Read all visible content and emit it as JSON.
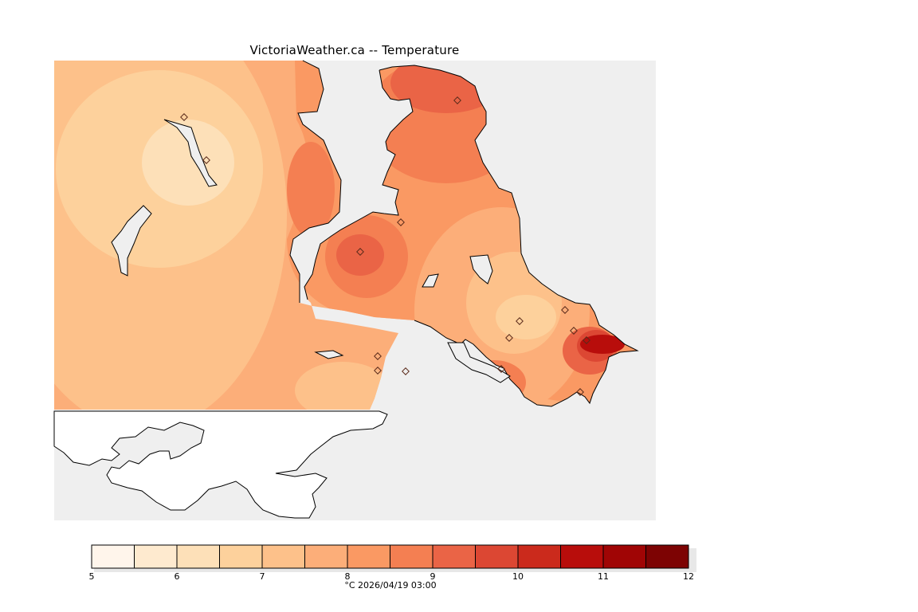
{
  "title": "VictoriaWeather.ca -- Temperature",
  "map": {
    "variable": "Temperature",
    "unit": "°C",
    "valid_time": "2026/04/19 03:00",
    "caption": "°C  2026/04/19 03:00",
    "colors": {
      "water": "#efefef",
      "land_outside_data": "#ffffff",
      "coastline": "#000000",
      "station_marker": "#7a3a2a"
    },
    "legend": {
      "min": 5,
      "max": 12,
      "tick_labels": [
        "5",
        "6",
        "7",
        "8",
        "9",
        "10",
        "11",
        "12"
      ],
      "bins": [
        {
          "from": 5.0,
          "to": 5.5,
          "color": "#fff5eb"
        },
        {
          "from": 5.5,
          "to": 6.0,
          "color": "#feeacf"
        },
        {
          "from": 6.0,
          "to": 6.5,
          "color": "#fde0b8"
        },
        {
          "from": 6.5,
          "to": 7.0,
          "color": "#fdd19c"
        },
        {
          "from": 7.0,
          "to": 7.5,
          "color": "#fdc18a"
        },
        {
          "from": 7.5,
          "to": 8.0,
          "color": "#fcae79"
        },
        {
          "from": 8.0,
          "to": 8.5,
          "color": "#fa9963"
        },
        {
          "from": 8.5,
          "to": 9.0,
          "color": "#f47f52"
        },
        {
          "from": 9.0,
          "to": 9.5,
          "color": "#ea6446"
        },
        {
          "from": 9.5,
          "to": 10.0,
          "color": "#dc4733"
        },
        {
          "from": 10.0,
          "to": 10.5,
          "color": "#cb2a1c"
        },
        {
          "from": 10.5,
          "to": 11.0,
          "color": "#b80d0b"
        },
        {
          "from": 11.0,
          "to": 11.5,
          "color": "#a00505"
        },
        {
          "from": 11.5,
          "to": 12.0,
          "color": "#7d0303"
        }
      ]
    }
  }
}
